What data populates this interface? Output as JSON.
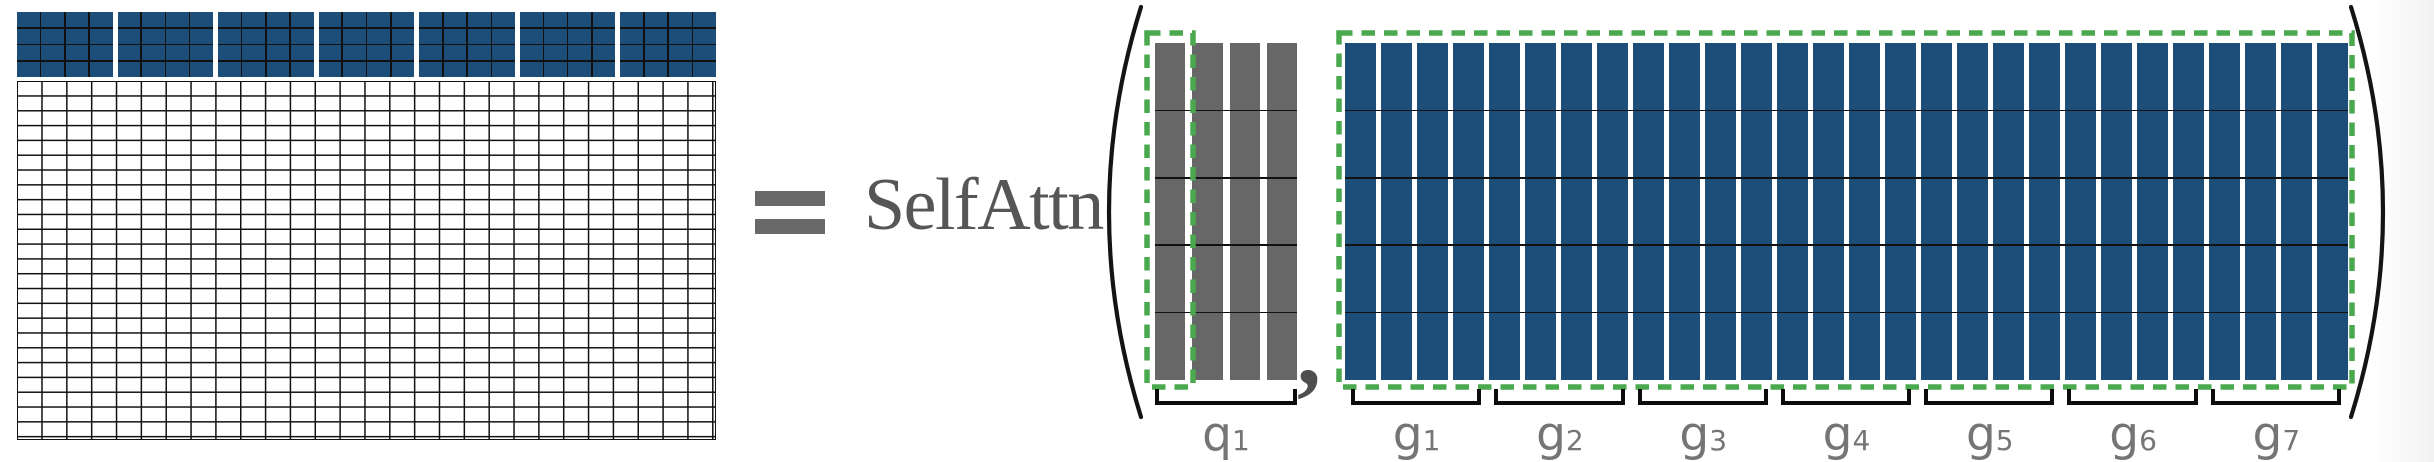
{
  "equation": {
    "equals": "=",
    "function": "SelfAttn",
    "separator": ",",
    "open_paren": "(",
    "close_paren": ")"
  },
  "colors": {
    "blue": "#1d4e7a",
    "gray": "#676767",
    "green": "#4aa84e",
    "line": "#111111",
    "text": "#565656",
    "equals": "#696969",
    "comma": "#4e4e4e",
    "label": "#757575"
  },
  "output_matrix": {
    "column_groups": 7,
    "columns_per_group": 4,
    "highlighted_rows": 4,
    "plain_rows": 24
  },
  "query": {
    "label_base": "q",
    "label_sub": "1",
    "columns": 4,
    "rows": 5,
    "highlighted_columns": 1
  },
  "key_groups": {
    "rows": 5,
    "columns_per_group": 4,
    "groups": [
      {
        "label_base": "g",
        "label_sub": "1"
      },
      {
        "label_base": "g",
        "label_sub": "2"
      },
      {
        "label_base": "g",
        "label_sub": "3"
      },
      {
        "label_base": "g",
        "label_sub": "4"
      },
      {
        "label_base": "g",
        "label_sub": "5"
      },
      {
        "label_base": "g",
        "label_sub": "6"
      },
      {
        "label_base": "g",
        "label_sub": "7"
      }
    ]
  }
}
